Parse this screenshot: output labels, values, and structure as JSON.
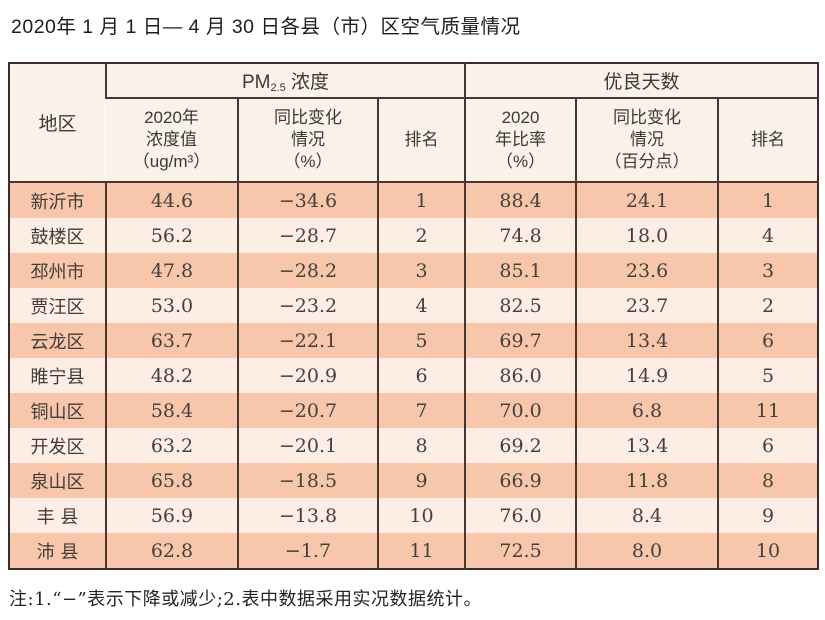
{
  "page": {
    "title": "2020年 1 月 1 日— 4 月 30 日各县（市）区空气质量情况"
  },
  "table": {
    "headers": {
      "region": "地区",
      "pm25_prefix": "PM",
      "pm25_sub": "2.5",
      "pm25_suffix": " 浓度",
      "good_days": "优良天数",
      "pm_value": [
        "2020年",
        "浓度值",
        "（ug/m³）"
      ],
      "pm_change": [
        "同比变化",
        "情况",
        "（%）"
      ],
      "pm_rank": "排名",
      "gd_ratio": [
        "2020",
        "年比率",
        "（%）"
      ],
      "gd_change": [
        "同比变化",
        "情况",
        "（百分点）"
      ],
      "gd_rank": "排名"
    },
    "rows": [
      {
        "region": "新沂市",
        "pm": "44.6",
        "pm_chg": "−34.6",
        "pm_rank": "1",
        "ratio": "88.4",
        "ratio_chg": "24.1",
        "gd_rank": "1"
      },
      {
        "region": "鼓楼区",
        "pm": "56.2",
        "pm_chg": "−28.7",
        "pm_rank": "2",
        "ratio": "74.8",
        "ratio_chg": "18.0",
        "gd_rank": "4"
      },
      {
        "region": "邳州市",
        "pm": "47.8",
        "pm_chg": "−28.2",
        "pm_rank": "3",
        "ratio": "85.1",
        "ratio_chg": "23.6",
        "gd_rank": "3"
      },
      {
        "region": "贾汪区",
        "pm": "53.0",
        "pm_chg": "−23.2",
        "pm_rank": "4",
        "ratio": "82.5",
        "ratio_chg": "23.7",
        "gd_rank": "2"
      },
      {
        "region": "云龙区",
        "pm": "63.7",
        "pm_chg": "−22.1",
        "pm_rank": "5",
        "ratio": "69.7",
        "ratio_chg": "13.4",
        "gd_rank": "6"
      },
      {
        "region": "睢宁县",
        "pm": "48.2",
        "pm_chg": "−20.9",
        "pm_rank": "6",
        "ratio": "86.0",
        "ratio_chg": "14.9",
        "gd_rank": "5"
      },
      {
        "region": "铜山区",
        "pm": "58.4",
        "pm_chg": "−20.7",
        "pm_rank": "7",
        "ratio": "70.0",
        "ratio_chg": "6.8",
        "gd_rank": "11"
      },
      {
        "region": "开发区",
        "pm": "63.2",
        "pm_chg": "−20.1",
        "pm_rank": "8",
        "ratio": "69.2",
        "ratio_chg": "13.4",
        "gd_rank": "6"
      },
      {
        "region": "泉山区",
        "pm": "65.8",
        "pm_chg": "−18.5",
        "pm_rank": "9",
        "ratio": "66.9",
        "ratio_chg": "11.8",
        "gd_rank": "8"
      },
      {
        "region": "丰 县",
        "pm": "56.9",
        "pm_chg": "−13.8",
        "pm_rank": "10",
        "ratio": "76.0",
        "ratio_chg": "8.4",
        "gd_rank": "9"
      },
      {
        "region": "沛 县",
        "pm": "62.8",
        "pm_chg": "−1.7",
        "pm_rank": "11",
        "ratio": "72.5",
        "ratio_chg": "8.0",
        "gd_rank": "10"
      }
    ]
  },
  "note": {
    "text": "注:1.“−”表示下降或减少;2.表中数据采用实况数据统计。"
  },
  "colors": {
    "row_dark": "#f8c7ab",
    "row_light": "#fdeee5",
    "header_bg": "#faf1e8",
    "border": "#4a3630",
    "outer_border": "#3c2b26"
  },
  "chart_data": {
    "type": "table",
    "title": "2020年1月1日—4月30日各县（市）区空气质量情况",
    "column_groups": [
      "地区",
      "PM2.5浓度",
      "优良天数"
    ],
    "columns": [
      "地区",
      "2020年浓度值（ug/m³）",
      "同比变化情况（%）",
      "PM2.5排名",
      "2020年比率（%）",
      "同比变化情况（百分点）",
      "优良天数排名"
    ],
    "rows": [
      [
        "新沂市",
        44.6,
        -34.6,
        1,
        88.4,
        24.1,
        1
      ],
      [
        "鼓楼区",
        56.2,
        -28.7,
        2,
        74.8,
        18.0,
        4
      ],
      [
        "邳州市",
        47.8,
        -28.2,
        3,
        85.1,
        23.6,
        3
      ],
      [
        "贾汪区",
        53.0,
        -23.2,
        4,
        82.5,
        23.7,
        2
      ],
      [
        "云龙区",
        63.7,
        -22.1,
        5,
        69.7,
        13.4,
        6
      ],
      [
        "睢宁县",
        48.2,
        -20.9,
        6,
        86.0,
        14.9,
        5
      ],
      [
        "铜山区",
        58.4,
        -20.7,
        7,
        70.0,
        6.8,
        11
      ],
      [
        "开发区",
        63.2,
        -20.1,
        8,
        69.2,
        13.4,
        6
      ],
      [
        "泉山区",
        65.8,
        -18.5,
        9,
        66.9,
        11.8,
        8
      ],
      [
        "丰县",
        56.9,
        -13.8,
        10,
        76.0,
        8.4,
        9
      ],
      [
        "沛县",
        62.8,
        -1.7,
        11,
        72.5,
        8.0,
        10
      ]
    ],
    "note": "注:1.“−”表示下降或减少;2.表中数据采用实况数据统计。"
  }
}
